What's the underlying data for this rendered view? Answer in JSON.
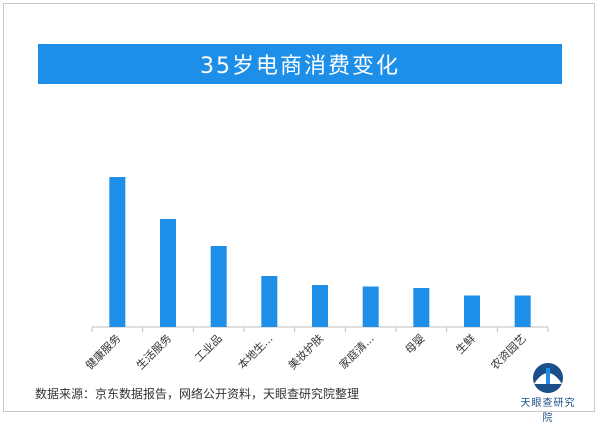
{
  "title": "35岁电商消费变化",
  "source": "数据来源：京东数据报告，网络公开资料，天眼查研究院整理",
  "logo_text": "天眼查研究院",
  "colors": {
    "bar": "#1e8fe8",
    "title_bg": "#1e8fe8",
    "axis": "#bfbfbf"
  },
  "chart_data": {
    "type": "bar",
    "categories": [
      "健康服务",
      "生活服务",
      "工业品",
      "本地生...",
      "美妆护肤",
      "家庭清...",
      "母婴",
      "生鲜",
      "农资园艺"
    ],
    "values": [
      100,
      72,
      54,
      34,
      28,
      27,
      26,
      21,
      21
    ],
    "title": "35岁电商消费变化",
    "xlabel": "",
    "ylabel": "",
    "ylim": [
      0,
      110
    ],
    "grid": false,
    "legend": "none"
  }
}
